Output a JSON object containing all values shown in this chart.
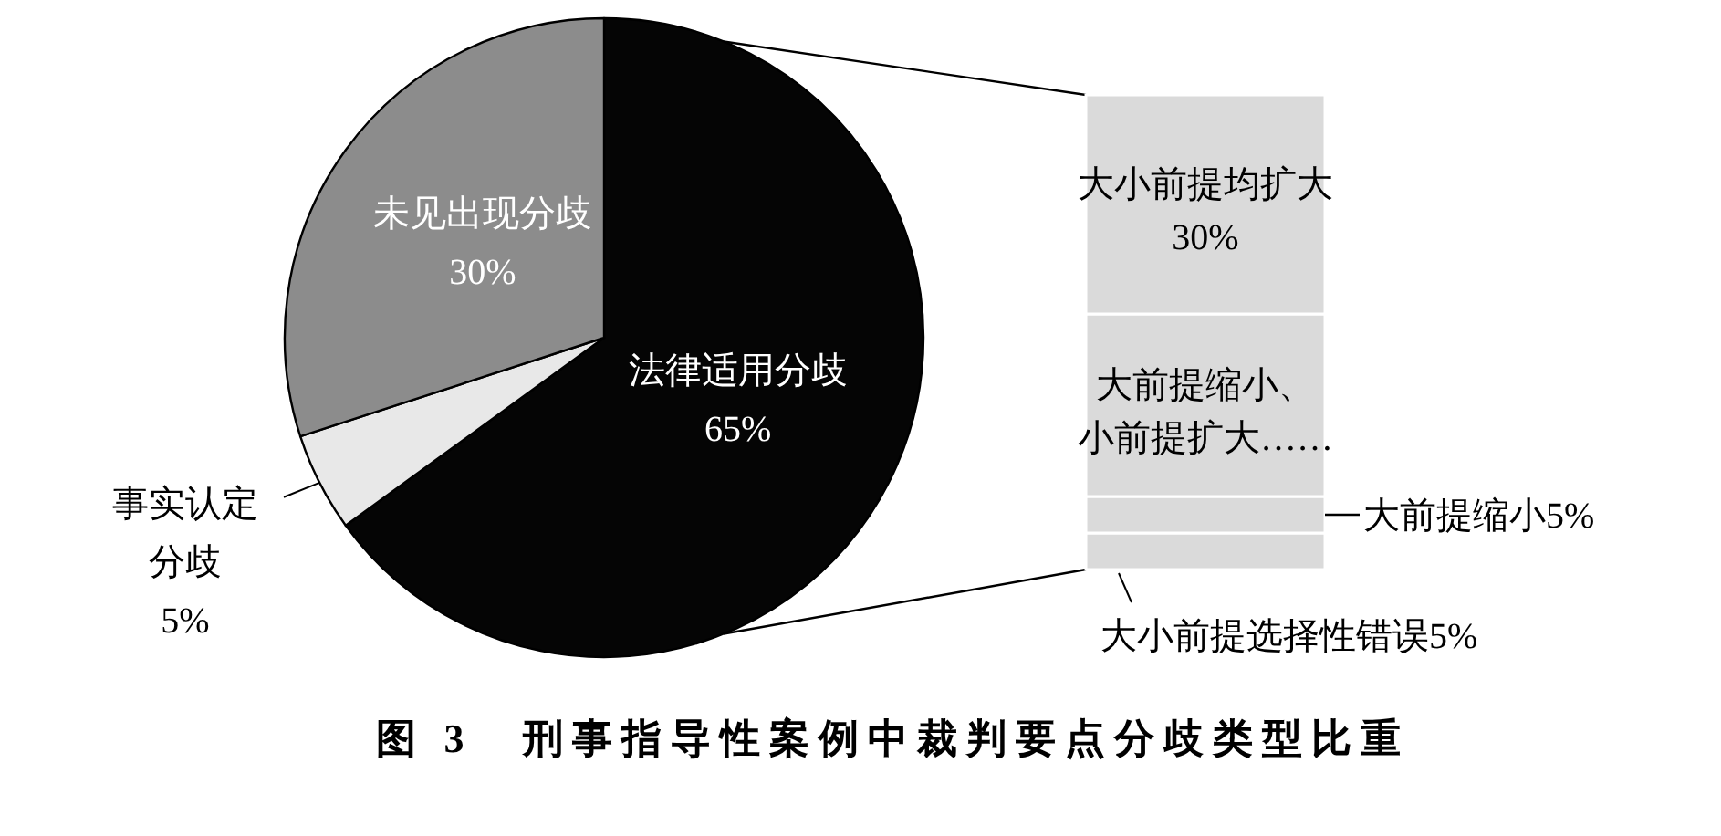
{
  "chart_data": [
    {
      "type": "pie",
      "title": "图 3　刑事指导性案例中裁判要点分歧类型比重",
      "categories": [
        "法律适用分歧",
        "事实认定分歧",
        "未见出现分歧"
      ],
      "values": [
        65,
        5,
        30
      ],
      "colors": [
        "#050505",
        "#e8e8e8",
        "#8c8c8c"
      ],
      "value_labels": [
        "65%",
        "5%",
        "30%"
      ]
    },
    {
      "type": "bar",
      "stacked": true,
      "categories": [
        null
      ],
      "series": [
        {
          "name": "大小前提选择性错误",
          "color": "#dadada",
          "values": [
            5
          ],
          "value_labels": [
            "5%"
          ]
        },
        {
          "name": "大前提缩小",
          "color": "#dadada",
          "values": [
            5
          ],
          "value_labels": [
            "5%"
          ]
        },
        {
          "name": "大前提缩小、小前提扩大……",
          "color": "#dadada",
          "values": [
            25
          ],
          "value_labels": [
            null
          ]
        },
        {
          "name": "大小前提均扩大",
          "color": "#dadada",
          "values": [
            30
          ],
          "value_labels": [
            "30%"
          ]
        }
      ]
    }
  ]
}
